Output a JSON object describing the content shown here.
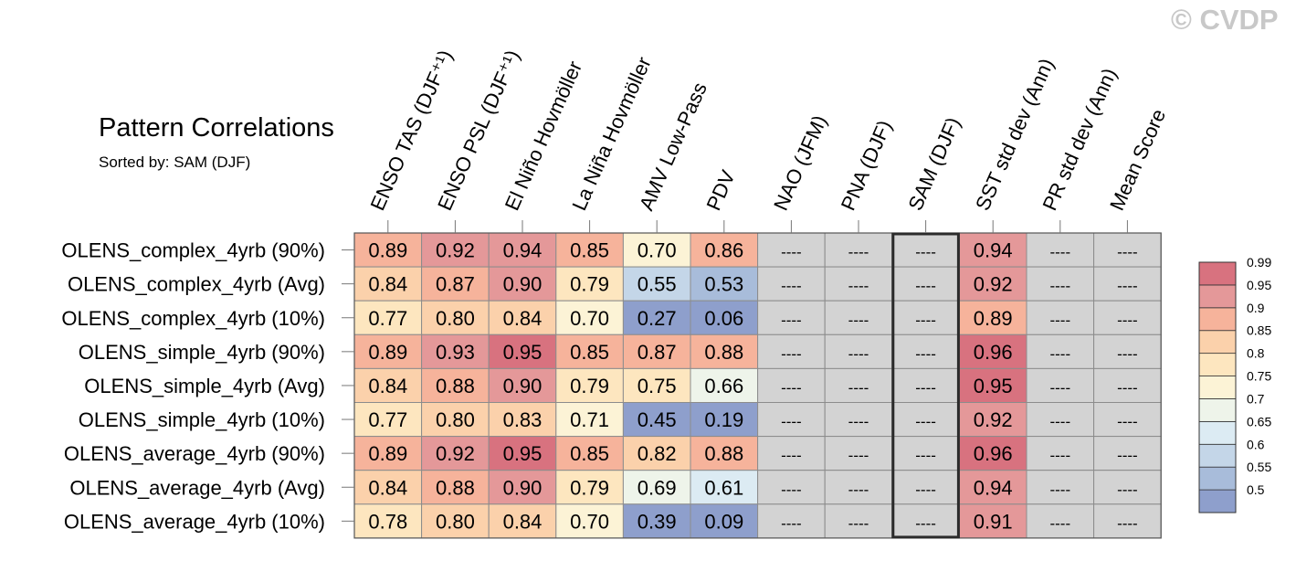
{
  "title": "Pattern Correlations",
  "subtitle": "Sorted by: SAM (DJF)",
  "watermark": "© CVDP",
  "colors": {
    "missing_cell": "#d3d3d3",
    "grid_line": "#8c8c8c",
    "highlight_border": "#2b2b2b",
    "scale": [
      "#8e9fcc",
      "#a8bcda",
      "#c4d6e8",
      "#dcebf3",
      "#eef4ea",
      "#fcf3d6",
      "#fde6bf",
      "#fbd1ab",
      "#f6b39b",
      "#e49899",
      "#d8727f"
    ]
  },
  "chart_data": {
    "type": "heatmap",
    "title": "Pattern Correlations",
    "subtitle": "Sorted by: SAM (DJF)",
    "columns": [
      "ENSO TAS (DJF⁺¹)",
      "ENSO PSL (DJF⁺¹)",
      "El Niño Hovmöller",
      "La Niña Hovmöller",
      "AMV Low-Pass",
      "PDV",
      "NAO (JFM)",
      "PNA (DJF)",
      "SAM (DJF)",
      "SST std dev (Ann)",
      "PR std dev (Ann)",
      "Mean Score"
    ],
    "highlighted_column": "SAM (DJF)",
    "rows": [
      "OLENS_complex_4yrb (90%)",
      "OLENS_complex_4yrb (Avg)",
      "OLENS_complex_4yrb (10%)",
      "OLENS_simple_4yrb (90%)",
      "OLENS_simple_4yrb (Avg)",
      "OLENS_simple_4yrb (10%)",
      "OLENS_average_4yrb (90%)",
      "OLENS_average_4yrb (Avg)",
      "OLENS_average_4yrb (10%)"
    ],
    "missing_label": "----",
    "values": [
      [
        0.89,
        0.92,
        0.94,
        0.85,
        0.7,
        0.86,
        null,
        null,
        null,
        0.94,
        null,
        null
      ],
      [
        0.84,
        0.87,
        0.9,
        0.79,
        0.55,
        0.53,
        null,
        null,
        null,
        0.92,
        null,
        null
      ],
      [
        0.77,
        0.8,
        0.84,
        0.7,
        0.27,
        0.06,
        null,
        null,
        null,
        0.89,
        null,
        null
      ],
      [
        0.89,
        0.93,
        0.95,
        0.85,
        0.87,
        0.88,
        null,
        null,
        null,
        0.96,
        null,
        null
      ],
      [
        0.84,
        0.88,
        0.9,
        0.79,
        0.75,
        0.66,
        null,
        null,
        null,
        0.95,
        null,
        null
      ],
      [
        0.77,
        0.8,
        0.83,
        0.71,
        0.45,
        0.19,
        null,
        null,
        null,
        0.92,
        null,
        null
      ],
      [
        0.89,
        0.92,
        0.95,
        0.85,
        0.82,
        0.88,
        null,
        null,
        null,
        0.96,
        null,
        null
      ],
      [
        0.84,
        0.88,
        0.9,
        0.79,
        0.69,
        0.61,
        null,
        null,
        null,
        0.94,
        null,
        null
      ],
      [
        0.78,
        0.8,
        0.84,
        0.7,
        0.39,
        0.09,
        null,
        null,
        null,
        0.91,
        null,
        null
      ]
    ],
    "colorbar": {
      "levels": [
        0.5,
        0.55,
        0.6,
        0.65,
        0.7,
        0.75,
        0.8,
        0.85,
        0.9,
        0.95,
        0.99
      ],
      "labels": [
        "0.5",
        "0.55",
        "0.6",
        "0.65",
        "0.7",
        "0.75",
        "0.8",
        "0.85",
        "0.9",
        "0.95",
        "0.99"
      ]
    }
  }
}
